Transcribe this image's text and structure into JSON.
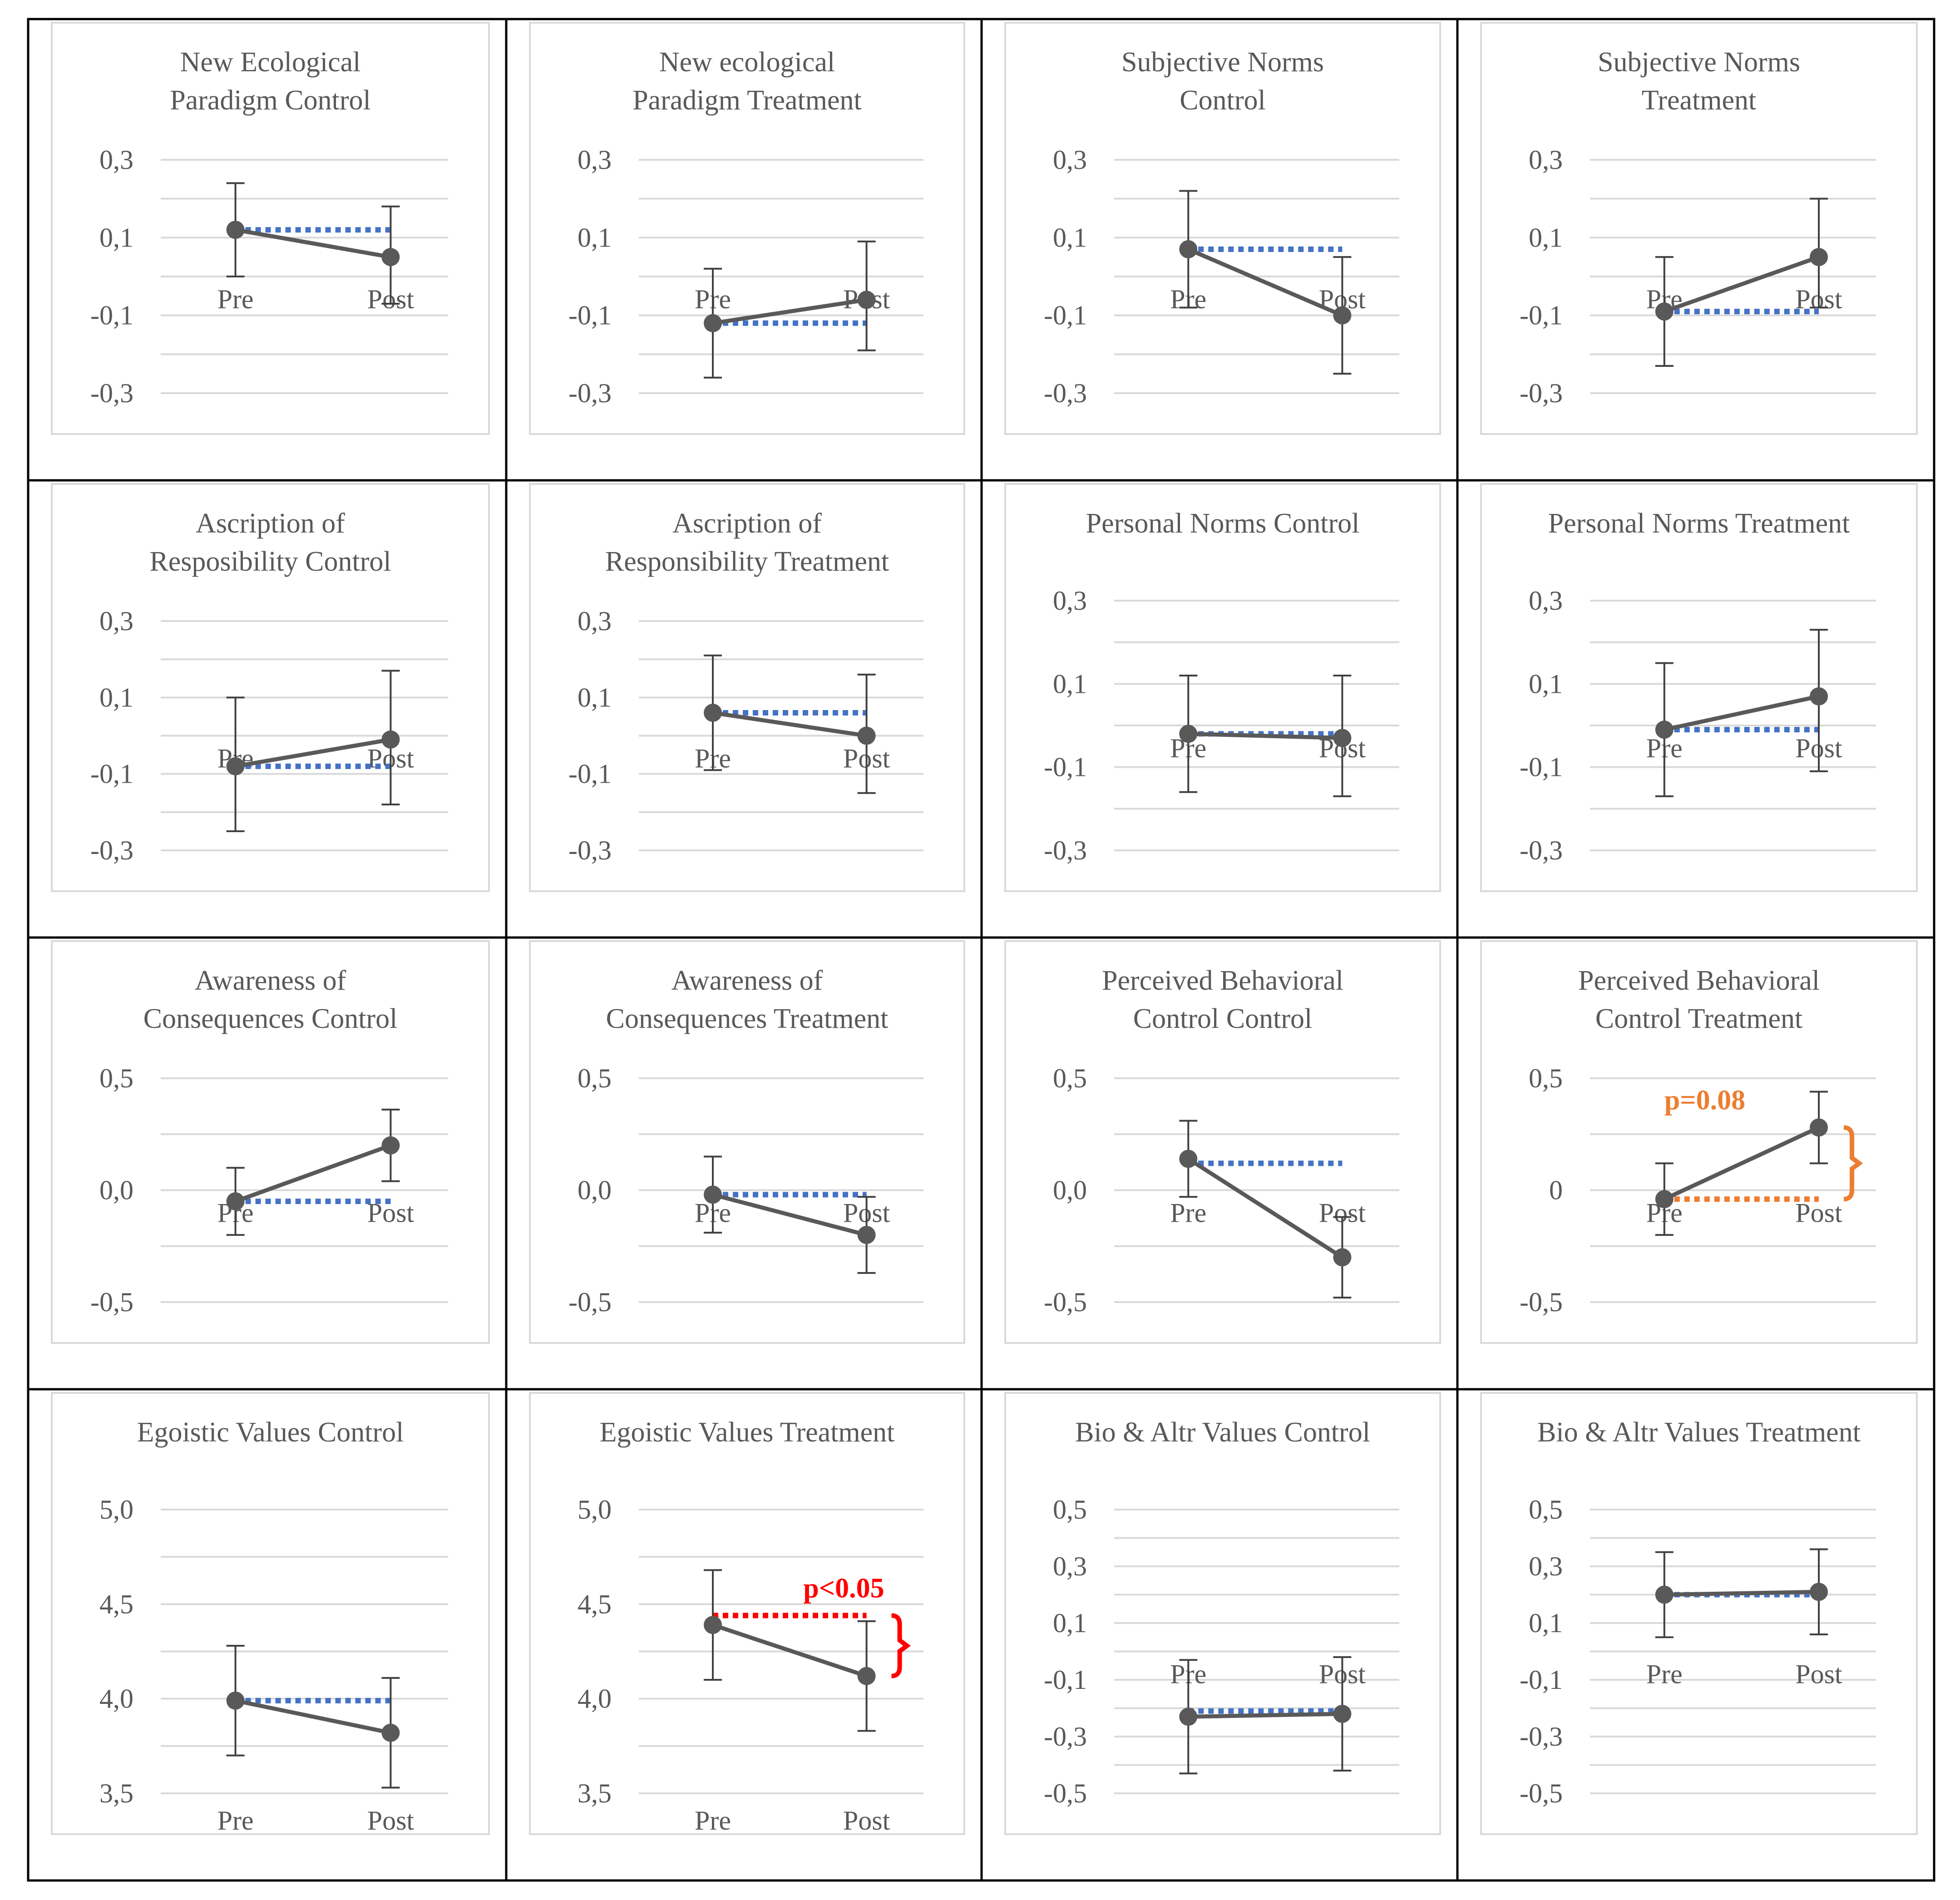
{
  "figure": {
    "description_free": true
  },
  "colors": {
    "series_line": "#595959",
    "error_bar": "#404040",
    "baseline_dotted": "#4472c4",
    "annotation_orange": "#ed7d31",
    "annotation_red": "#ff0000",
    "gridline": "#d9d9d9",
    "text": "#595959"
  },
  "chart_data": [
    {
      "type": "line",
      "title_lines": [
        "New Ecological",
        "Paradigm Control"
      ],
      "categories": [
        "Pre",
        "Post"
      ],
      "ticks": [
        "0,3",
        "0,1",
        "-0,1",
        "-0,3"
      ],
      "tick_values": [
        0.3,
        0.1,
        -0.1,
        -0.3
      ],
      "ylim": [
        -0.3,
        0.3
      ],
      "values": [
        0.12,
        0.05
      ],
      "err_low": [
        0.0,
        -0.07
      ],
      "err_high": [
        0.24,
        0.18
      ],
      "baseline": 0.12
    },
    {
      "type": "line",
      "title_lines": [
        "New ecological",
        "Paradigm Treatment"
      ],
      "categories": [
        "Pre",
        "Post"
      ],
      "ticks": [
        "0,3",
        "0,1",
        "-0,1",
        "-0,3"
      ],
      "tick_values": [
        0.3,
        0.1,
        -0.1,
        -0.3
      ],
      "ylim": [
        -0.3,
        0.3
      ],
      "values": [
        -0.12,
        -0.06
      ],
      "err_low": [
        -0.26,
        -0.19
      ],
      "err_high": [
        0.02,
        0.09
      ],
      "baseline": -0.12
    },
    {
      "type": "line",
      "title_lines": [
        "Subjective Norms",
        "Control"
      ],
      "categories": [
        "Pre",
        "Post"
      ],
      "ticks": [
        "0,3",
        "0,1",
        "-0,1",
        "-0,3"
      ],
      "tick_values": [
        0.3,
        0.1,
        -0.1,
        -0.3
      ],
      "ylim": [
        -0.3,
        0.3
      ],
      "values": [
        0.07,
        -0.1
      ],
      "err_low": [
        -0.08,
        -0.25
      ],
      "err_high": [
        0.22,
        0.05
      ],
      "baseline": 0.07
    },
    {
      "type": "line",
      "title_lines": [
        "Subjective Norms",
        "Treatment"
      ],
      "categories": [
        "Pre",
        "Post"
      ],
      "ticks": [
        "0,3",
        "0,1",
        "-0,1",
        "-0,3"
      ],
      "tick_values": [
        0.3,
        0.1,
        -0.1,
        -0.3
      ],
      "ylim": [
        -0.3,
        0.3
      ],
      "values": [
        -0.09,
        0.05
      ],
      "err_low": [
        -0.23,
        -0.08
      ],
      "err_high": [
        0.05,
        0.2
      ],
      "baseline": -0.09
    },
    {
      "type": "line",
      "title_lines": [
        "Ascription of",
        "Resposibility Control"
      ],
      "categories": [
        "Pre",
        "Post"
      ],
      "ticks": [
        "0,3",
        "0,1",
        "-0,1",
        "-0,3"
      ],
      "tick_values": [
        0.3,
        0.1,
        -0.1,
        -0.3
      ],
      "ylim": [
        -0.3,
        0.3
      ],
      "values": [
        -0.08,
        -0.01
      ],
      "err_low": [
        -0.25,
        -0.18
      ],
      "err_high": [
        0.1,
        0.17
      ],
      "baseline": -0.08
    },
    {
      "type": "line",
      "title_lines": [
        "Ascription of",
        "Responsibility Treatment"
      ],
      "categories": [
        "Pre",
        "Post"
      ],
      "ticks": [
        "0,3",
        "0,1",
        "-0,1",
        "-0,3"
      ],
      "tick_values": [
        0.3,
        0.1,
        -0.1,
        -0.3
      ],
      "ylim": [
        -0.3,
        0.3
      ],
      "values": [
        0.06,
        0.0
      ],
      "err_low": [
        -0.09,
        -0.15
      ],
      "err_high": [
        0.21,
        0.16
      ],
      "baseline": 0.06
    },
    {
      "type": "line",
      "title_lines": [
        "Personal Norms Control"
      ],
      "categories": [
        "Pre",
        "Post"
      ],
      "ticks": [
        "0,3",
        "0,1",
        "-0,1",
        "-0,3"
      ],
      "tick_values": [
        0.3,
        0.1,
        -0.1,
        -0.3
      ],
      "ylim": [
        -0.3,
        0.3
      ],
      "values": [
        -0.02,
        -0.03
      ],
      "err_low": [
        -0.16,
        -0.17
      ],
      "err_high": [
        0.12,
        0.12
      ],
      "baseline": -0.02
    },
    {
      "type": "line",
      "title_lines": [
        "Personal Norms Treatment"
      ],
      "categories": [
        "Pre",
        "Post"
      ],
      "ticks": [
        "0,3",
        "0,1",
        "-0,1",
        "-0,3"
      ],
      "tick_values": [
        0.3,
        0.1,
        -0.1,
        -0.3
      ],
      "ylim": [
        -0.3,
        0.3
      ],
      "values": [
        -0.01,
        0.07
      ],
      "err_low": [
        -0.17,
        -0.11
      ],
      "err_high": [
        0.15,
        0.23
      ],
      "baseline": -0.01
    },
    {
      "type": "line",
      "title_lines": [
        "Awareness of",
        "Consequences Control"
      ],
      "categories": [
        "Pre",
        "Post"
      ],
      "ticks": [
        "0,5",
        "0,0",
        "-0,5"
      ],
      "tick_values": [
        0.5,
        0.0,
        -0.5
      ],
      "ylim": [
        -0.5,
        0.5
      ],
      "values": [
        -0.05,
        0.2
      ],
      "err_low": [
        -0.2,
        0.04
      ],
      "err_high": [
        0.1,
        0.36
      ],
      "baseline": -0.05
    },
    {
      "type": "line",
      "title_lines": [
        "Awareness of",
        "Consequences Treatment"
      ],
      "categories": [
        "Pre",
        "Post"
      ],
      "ticks": [
        "0,5",
        "0,0",
        "-0,5"
      ],
      "tick_values": [
        0.5,
        0.0,
        -0.5
      ],
      "ylim": [
        -0.5,
        0.5
      ],
      "values": [
        -0.02,
        -0.2
      ],
      "err_low": [
        -0.19,
        -0.37
      ],
      "err_high": [
        0.15,
        -0.03
      ],
      "baseline": -0.02
    },
    {
      "type": "line",
      "title_lines": [
        "Perceived Behavioral",
        "Control Control"
      ],
      "categories": [
        "Pre",
        "Post"
      ],
      "ticks": [
        "0,5",
        "0,0",
        "-0,5"
      ],
      "tick_values": [
        0.5,
        0.0,
        -0.5
      ],
      "ylim": [
        -0.5,
        0.5
      ],
      "values": [
        0.14,
        -0.3
      ],
      "err_low": [
        -0.03,
        -0.48
      ],
      "err_high": [
        0.31,
        -0.12
      ],
      "baseline": 0.12
    },
    {
      "type": "line",
      "title_lines": [
        "Perceived Behavioral",
        "Control Treatment"
      ],
      "categories": [
        "Pre",
        "Post"
      ],
      "ticks": [
        "0,5",
        "0",
        "-0,5"
      ],
      "tick_values": [
        0.5,
        0.0,
        -0.5
      ],
      "ylim": [
        -0.5,
        0.5
      ],
      "values": [
        -0.04,
        0.28
      ],
      "err_low": [
        -0.2,
        0.12
      ],
      "err_high": [
        0.12,
        0.44
      ],
      "baseline": -0.04,
      "baseline_color": "#ed7d31",
      "annotation": {
        "text": "p=0.08",
        "color": "#ed7d31"
      }
    },
    {
      "type": "line",
      "title_lines": [
        "Egoistic Values Control"
      ],
      "categories": [
        "Pre",
        "Post"
      ],
      "ticks": [
        "5,0",
        "4,5",
        "4,0",
        "3,5"
      ],
      "tick_values": [
        5.0,
        4.5,
        4.0,
        3.5
      ],
      "ylim": [
        3.5,
        5.0
      ],
      "values": [
        3.99,
        3.82
      ],
      "err_low": [
        3.7,
        3.53
      ],
      "err_high": [
        4.28,
        4.11
      ],
      "baseline": 3.99
    },
    {
      "type": "line",
      "title_lines": [
        "Egoistic Values Treatment"
      ],
      "categories": [
        "Pre",
        "Post"
      ],
      "ticks": [
        "5,0",
        "4,5",
        "4,0",
        "3,5"
      ],
      "tick_values": [
        5.0,
        4.5,
        4.0,
        3.5
      ],
      "ylim": [
        3.5,
        5.0
      ],
      "values": [
        4.39,
        4.12
      ],
      "err_low": [
        4.1,
        3.83
      ],
      "err_high": [
        4.68,
        4.41
      ],
      "baseline": 4.44,
      "baseline_color": "#ff0000",
      "annotation": {
        "text": "p<0.05",
        "color": "#ff0000"
      }
    },
    {
      "type": "line",
      "title_lines": [
        "Bio & Altr Values Control"
      ],
      "categories": [
        "Pre",
        "Post"
      ],
      "ticks": [
        "0,5",
        "0,3",
        "0,1",
        "-0,1",
        "-0,3",
        "-0,5"
      ],
      "tick_values": [
        0.5,
        0.3,
        0.1,
        -0.1,
        -0.3,
        -0.5
      ],
      "ylim": [
        -0.5,
        0.5
      ],
      "values": [
        -0.23,
        -0.22
      ],
      "err_low": [
        -0.43,
        -0.42
      ],
      "err_high": [
        -0.03,
        -0.02
      ],
      "baseline": -0.21
    },
    {
      "type": "line",
      "title_lines": [
        "Bio & Altr Values Treatment"
      ],
      "categories": [
        "Pre",
        "Post"
      ],
      "ticks": [
        "0,5",
        "0,3",
        "0,1",
        "-0,1",
        "-0,3",
        "-0,5"
      ],
      "tick_values": [
        0.5,
        0.3,
        0.1,
        -0.1,
        -0.3,
        -0.5
      ],
      "ylim": [
        -0.5,
        0.5
      ],
      "values": [
        0.2,
        0.21
      ],
      "err_low": [
        0.05,
        0.06
      ],
      "err_high": [
        0.35,
        0.36
      ],
      "baseline": 0.2
    }
  ]
}
